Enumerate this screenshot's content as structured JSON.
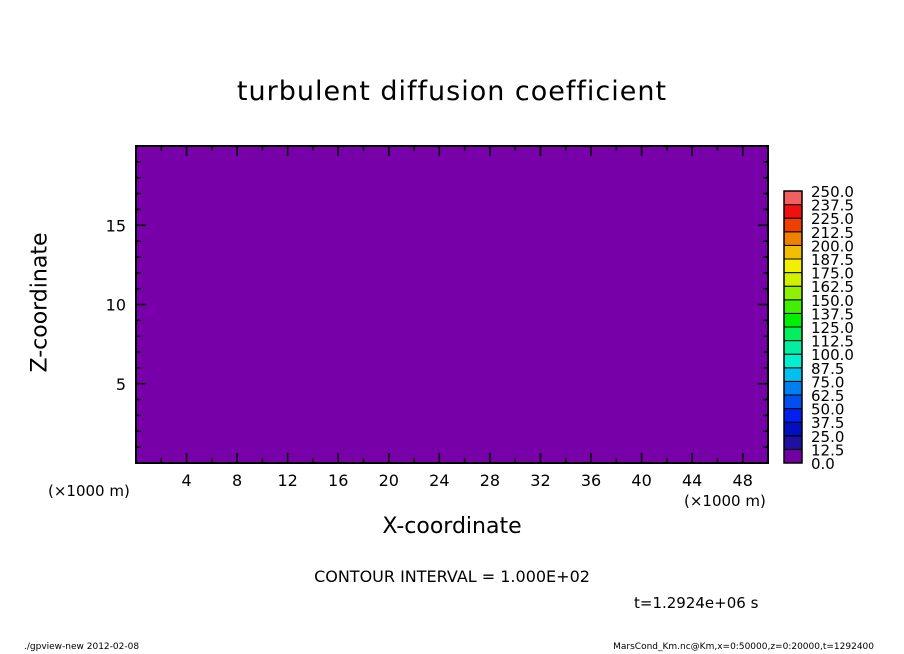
{
  "chart_data": {
    "type": "heatmap",
    "title": "turbulent diffusion coefficient",
    "xlabel": "X-coordinate",
    "ylabel": "Z-coordinate",
    "x_unit": "(×1000 m)",
    "y_unit": "(×1000 m)",
    "xlim": [
      0,
      50
    ],
    "ylim": [
      0,
      20
    ],
    "x_ticks": [
      4,
      8,
      12,
      16,
      20,
      24,
      28,
      32,
      36,
      40,
      44,
      48
    ],
    "x_minor_step": 2,
    "y_ticks": [
      5,
      10,
      15
    ],
    "field_value": 0.0,
    "field_color": "#7800a8",
    "colorbar": {
      "levels": [
        "0.0",
        "12.5",
        "25.0",
        "37.5",
        "50.0",
        "62.5",
        "75.0",
        "87.5",
        "100.0",
        "112.5",
        "125.0",
        "137.5",
        "150.0",
        "162.5",
        "175.0",
        "187.5",
        "200.0",
        "212.5",
        "225.0",
        "237.5",
        "250.0"
      ],
      "colors": [
        "#7000a0",
        "#2010a0",
        "#0010c0",
        "#0020f0",
        "#0050f0",
        "#0080f0",
        "#00c0f0",
        "#00f0d0",
        "#00f0a0",
        "#00f060",
        "#00f000",
        "#40f000",
        "#90f000",
        "#d0f000",
        "#f0f000",
        "#f0c000",
        "#f08000",
        "#f04000",
        "#f01010",
        "#f06060"
      ]
    },
    "contour_interval": "CONTOUR INTERVAL = 1.000E+02",
    "time": "t=1.2924e+06 s"
  },
  "footer": {
    "left": "./gpview-new  2012-02-08",
    "right": "MarsCond_Km.nc@Km,x=0:50000,z=0:20000,t=1292400"
  }
}
